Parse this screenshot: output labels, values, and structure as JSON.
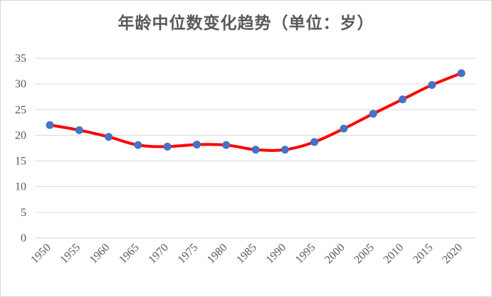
{
  "chart_data": {
    "type": "line",
    "title": "年龄中位数变化趋势（单位：岁）",
    "xlabel": "",
    "ylabel": "",
    "categories": [
      "1950",
      "1955",
      "1960",
      "1965",
      "1970",
      "1975",
      "1980",
      "1985",
      "1990",
      "1995",
      "2000",
      "2005",
      "2010",
      "2015",
      "2020"
    ],
    "series": [
      {
        "values": [
          22.0,
          21.0,
          19.7,
          18.1,
          17.8,
          18.2,
          18.1,
          17.2,
          17.2,
          18.7,
          21.3,
          24.2,
          27.0,
          29.8,
          32.1
        ]
      }
    ],
    "ylim": [
      0,
      35
    ],
    "yticks": [
      "0",
      "5",
      "10",
      "15",
      "20",
      "25",
      "30",
      "35"
    ],
    "grid": true,
    "legend": "none",
    "colors": {
      "line": "#ff0000",
      "marker": "#4472c4",
      "grid": "#d9d9d9",
      "text": "#595959"
    }
  }
}
